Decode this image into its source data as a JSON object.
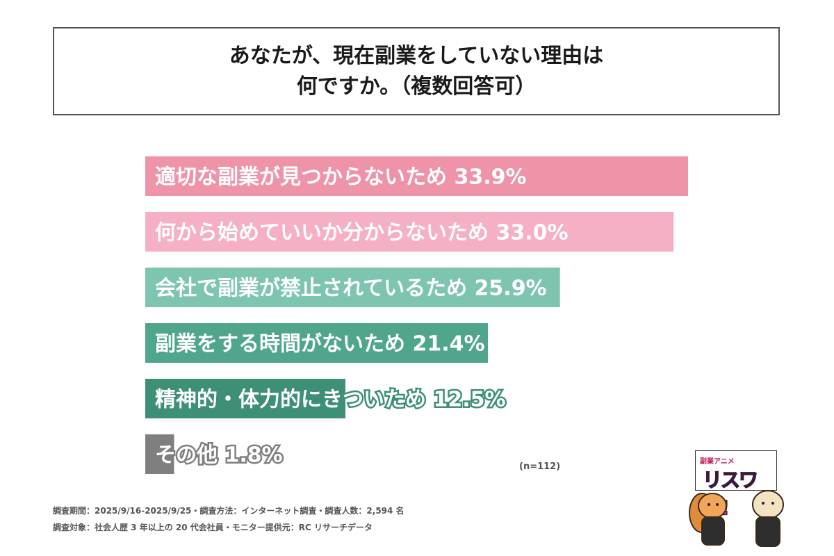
{
  "header": {
    "title_line1": "あなたが、現在副業をしていない理由は",
    "title_line2": "何ですか。（複数回答可）"
  },
  "chart_data": {
    "type": "bar",
    "orientation": "horizontal",
    "categories": [
      "適切な副業が見つからないため",
      "何から始めていいか分からないため",
      "会社で副業が禁止されているため",
      "副業をする時間がないため",
      "精神的・体力的にきついため",
      "その他"
    ],
    "values": [
      33.9,
      33.0,
      25.9,
      21.4,
      12.5,
      1.8
    ],
    "value_labels": [
      "33.9%",
      "33.0%",
      "25.9%",
      "21.4%",
      "12.5%",
      "1.8%"
    ],
    "colors": [
      "#ef93a9",
      "#f5b1c3",
      "#7ec5b0",
      "#4fa68d",
      "#3d8f76",
      "#7f7f7f"
    ],
    "xlim": [
      0,
      33.9
    ]
  },
  "sample_note": "(n=112)",
  "footer": {
    "line1": "調査期間：2025/9/16-2025/9/25・調査方法：インターネット調査・調査人数：2,594 名",
    "line2": "調査対象：社会人歴 3 年以上の 20 代会社員・モニター提供元：RC リサーチデータ"
  },
  "logo": {
    "small_text": "副業アニメ",
    "big_text": "リスワク!"
  }
}
